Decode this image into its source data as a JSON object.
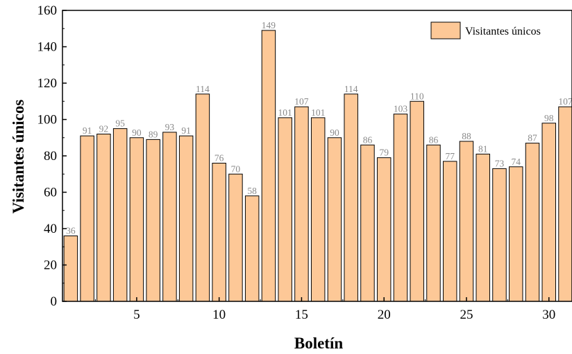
{
  "chart_data": {
    "type": "bar",
    "xlabel": "Boletín",
    "ylabel": "Visitantes únicos",
    "x": [
      1,
      2,
      3,
      4,
      5,
      6,
      7,
      8,
      9,
      10,
      11,
      12,
      13,
      14,
      15,
      16,
      17,
      18,
      19,
      20,
      21,
      22,
      23,
      24,
      25,
      26,
      27,
      28,
      29,
      30,
      31
    ],
    "series": [
      {
        "name": "Visitantes únicos",
        "values": [
          36,
          91,
          92,
          95,
          90,
          89,
          93,
          91,
          114,
          76,
          70,
          58,
          149,
          101,
          107,
          101,
          90,
          114,
          86,
          79,
          103,
          110,
          86,
          77,
          88,
          81,
          73,
          74,
          87,
          98,
          107
        ],
        "labels": [
          "36",
          "91",
          "92",
          "95",
          "90",
          "89",
          "93",
          "91",
          "114",
          "76",
          "70",
          "58",
          "149",
          "101",
          "107",
          "101",
          "90",
          "114",
          "86",
          "79",
          "103",
          "110",
          "86",
          "77",
          "88",
          "81",
          "73",
          "74",
          "87",
          "98",
          "107"
        ]
      }
    ],
    "xticks": [
      "5",
      "10",
      "15",
      "20",
      "25",
      "30"
    ],
    "yticks": [
      "0",
      "20",
      "40",
      "60",
      "80",
      "100",
      "120",
      "140",
      "160"
    ],
    "ylim": [
      0,
      160
    ],
    "legend_position": "top-right",
    "bar_color": "#fdc897",
    "bar_edge_color": "#000000",
    "label_color": "#8a8a8a"
  }
}
